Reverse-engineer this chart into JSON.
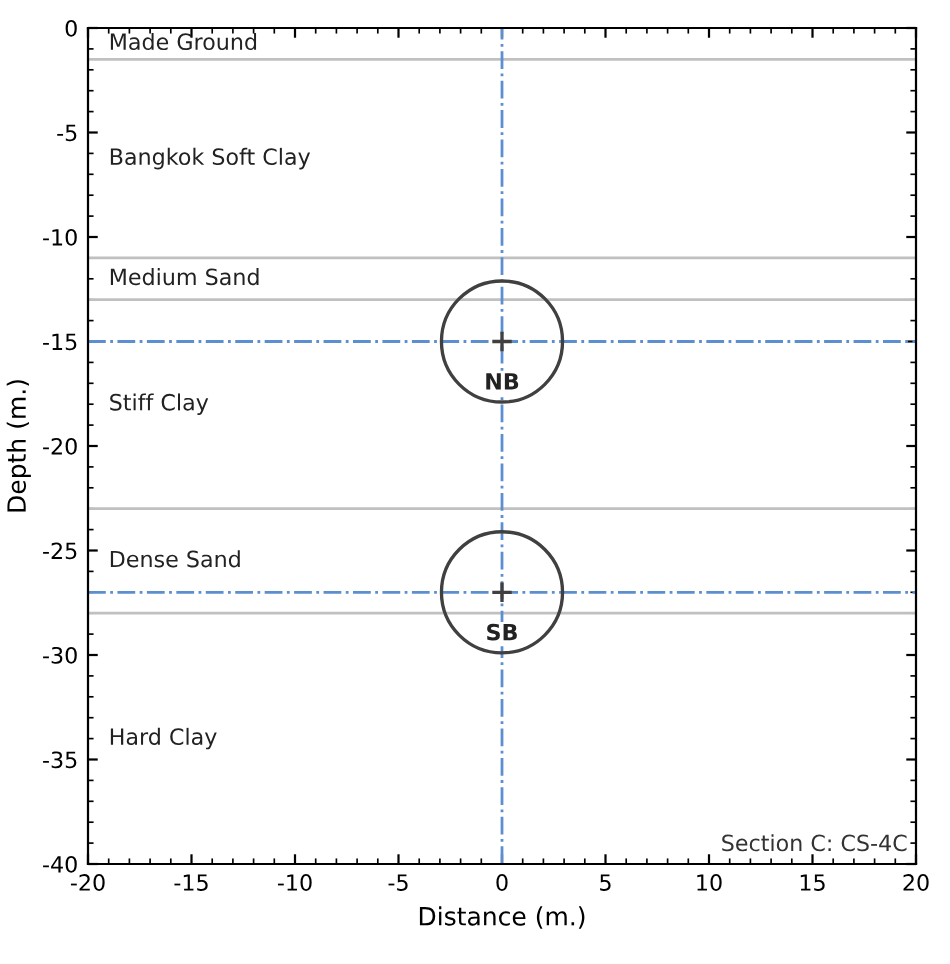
{
  "chart_data": {
    "type": "scatter",
    "xlabel": "Distance (m.)",
    "ylabel": "Depth (m.)",
    "x": [
      0,
      0
    ],
    "values": [
      -15,
      -27
    ],
    "color": "#404040",
    "marker": "circle",
    "xlim": [
      -20,
      20
    ],
    "ylim": [
      -40,
      0
    ],
    "xticks": [
      -20,
      -15,
      -10,
      -5,
      0,
      5,
      10,
      15,
      20
    ],
    "yticks": [
      -40,
      -35,
      -30,
      -25,
      -20,
      -15,
      -10,
      -5,
      0
    ],
    "grid": false,
    "ref_lines": [
      {
        "axis": "y",
        "value": -1.5,
        "color": "#c0c0c0",
        "line_style": "solid"
      },
      {
        "axis": "y",
        "value": -11,
        "color": "#c0c0c0",
        "line_style": "solid"
      },
      {
        "axis": "y",
        "value": -13,
        "color": "#c0c0c0",
        "line_style": "solid"
      },
      {
        "axis": "y",
        "value": -23,
        "color": "#c0c0c0",
        "line_style": "solid"
      },
      {
        "axis": "y",
        "value": -28,
        "color": "#c0c0c0",
        "line_style": "solid"
      },
      {
        "axis": "x",
        "value": 0,
        "color": "#5b8fd0",
        "line_style": "dashdot"
      },
      {
        "axis": "y",
        "value": -15,
        "color": "#5b8fd0",
        "line_style": "dashdot"
      },
      {
        "axis": "y",
        "value": -27,
        "color": "#5b8fd0",
        "line_style": "dashdot"
      }
    ],
    "annotations": [
      "Made Ground",
      "Bangkok Soft Clay",
      "Medium Sand",
      "Stiff Clay",
      "Dense Sand",
      "Hard Clay",
      {
        "text": "NB",
        "x": 0,
        "y": -17
      },
      {
        "text": "SB",
        "x": 0,
        "y": -29
      },
      "Section C: CS-4C"
    ]
  }
}
